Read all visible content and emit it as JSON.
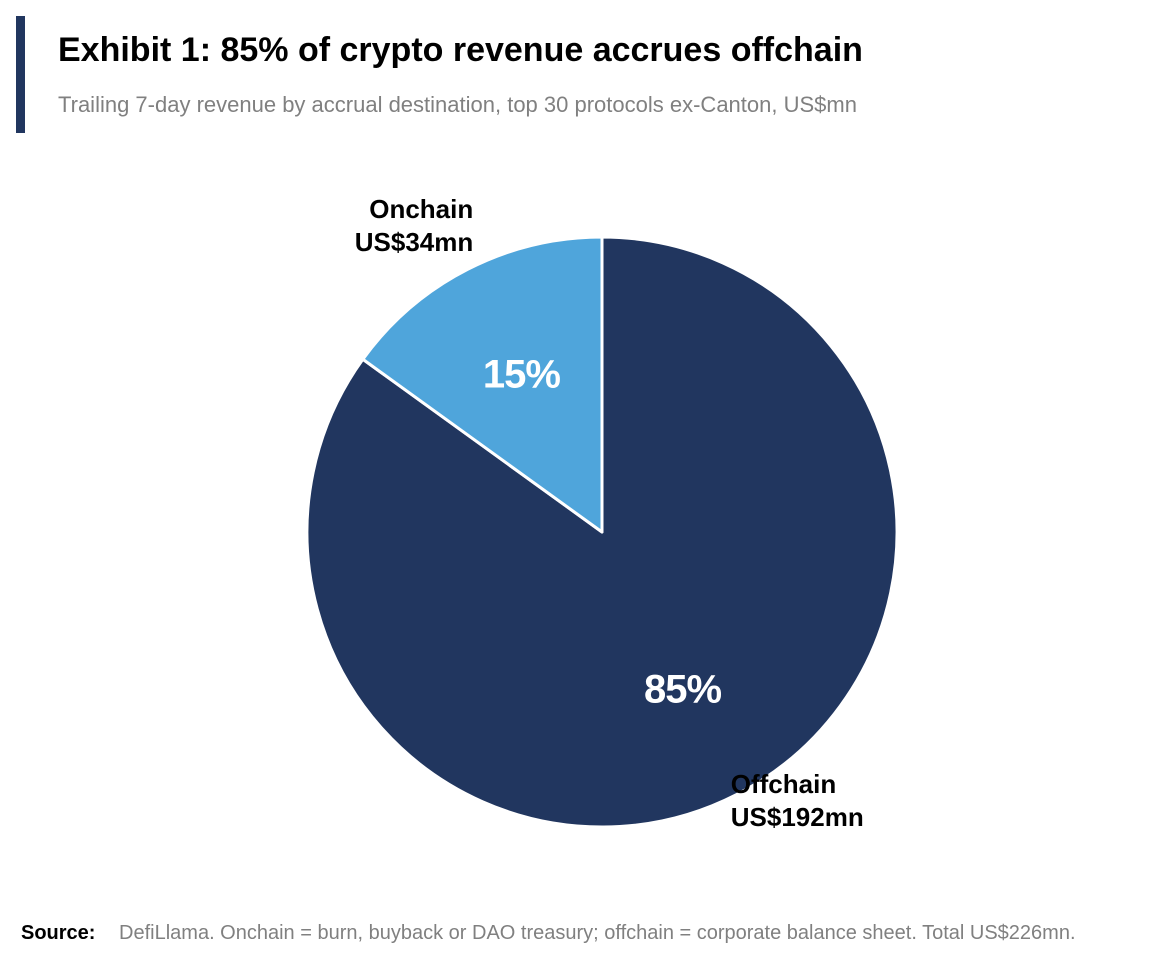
{
  "header": {
    "title": "Exhibit 1: 85% of crypto revenue accrues offchain",
    "subtitle": "Trailing 7-day revenue by accrual destination, top 30 protocols ex-Canton, US$mn",
    "accent_color": "#21365f"
  },
  "chart_data": {
    "type": "pie",
    "title": "Exhibit 1: 85% of crypto revenue accrues offchain",
    "subtitle": "Trailing 7-day revenue by accrual destination, top 30 protocols ex-Canton, US$mn",
    "start": "12 o'clock",
    "direction": "clockwise",
    "slices": [
      {
        "name": "Offchain",
        "value": 192,
        "percent_label": "85%",
        "callout_name": "Offchain",
        "callout_value": "US$192mn",
        "color": "#21365f"
      },
      {
        "name": "Onchain",
        "value": 34,
        "percent_label": "15%",
        "callout_name": "Onchain",
        "callout_value": "US$34mn",
        "color": "#4fa5db"
      }
    ]
  },
  "footer": {
    "source_label": "Source:",
    "source_text": "DefiLlama. Onchain = burn, buyback or DAO treasury; offchain = corporate balance sheet. Total US$226mn."
  }
}
